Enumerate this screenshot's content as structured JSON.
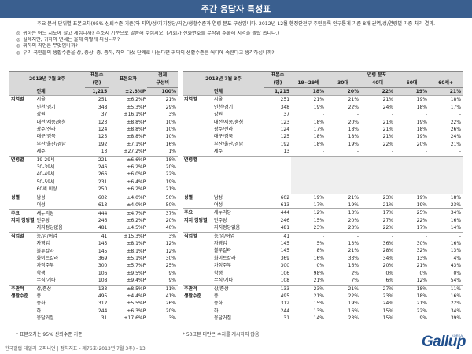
{
  "header": {
    "title": "주간 응답자 특성표",
    "subtitle": "주요 분석 단위별 표본오차(95% 신뢰수준 기준)와 지역/성/지지정당/직업/생활수준과 연령 분포 구성입니다. 2012년 12월 행정안전부 주민등록 인구통계 기준 8개 권역/성/연령별 가중 처리 결과."
  },
  "questions": [
    {
      "mark": "◎",
      "text": "귀하는 어느 시도에 살고 계십니까? 주소지 기준으로 말씀해 주십시오. (거회가 전화번호를 무작위 추출해 지역을 몰랐 옵니다.)"
    },
    {
      "mark": "◎",
      "text": "실례지만, 귀하의 연세는 올해 어떻게 되십니까?"
    },
    {
      "mark": "◎",
      "text": "귀하의 직업은 무엇입니까?"
    },
    {
      "mark": "◎",
      "text": "우리 국민들의 생활수준을 상, 중상, 중, 중하, 하의 다섯 단계로 나눈다면 귀댁의 생활수준은 어디에 속한다고 생각하십니까?"
    }
  ],
  "left_table": {
    "period": "2013년 7월 3주",
    "col_n": "표본수\n(명)",
    "col_n1": "표본수",
    "col_n2": "(명)",
    "col_err": "표본오차",
    "col_comp1": "전체",
    "col_comp2": "구성비",
    "rows": [
      {
        "cat": "",
        "label": "전체",
        "n": "1,215",
        "err": "±2.8%P",
        "comp": "100%",
        "total": true
      },
      {
        "cat": "지역별",
        "label": "서울",
        "n": "251",
        "err": "±6.2%P",
        "comp": "21%",
        "start": true
      },
      {
        "cat": "",
        "label": "인천/경기",
        "n": "348",
        "err": "±5.3%P",
        "comp": "29%"
      },
      {
        "cat": "",
        "label": "강원",
        "n": "37",
        "err": "±16.1%P",
        "comp": "3%"
      },
      {
        "cat": "",
        "label": "대전/세종/충청",
        "n": "123",
        "err": "±8.8%P",
        "comp": "10%"
      },
      {
        "cat": "",
        "label": "광주/전라",
        "n": "124",
        "err": "±8.8%P",
        "comp": "10%"
      },
      {
        "cat": "",
        "label": "대구/경북",
        "n": "125",
        "err": "±8.8%P",
        "comp": "10%"
      },
      {
        "cat": "",
        "label": "부산/울산/경남",
        "n": "192",
        "err": "±7.1%P",
        "comp": "16%"
      },
      {
        "cat": "",
        "label": "제주",
        "n": "13",
        "err": "±27.2%P",
        "comp": "1%"
      },
      {
        "cat": "연령별",
        "label": "19-29세",
        "n": "221",
        "err": "±6.6%P",
        "comp": "18%",
        "start": true
      },
      {
        "cat": "",
        "label": "30-39세",
        "n": "246",
        "err": "±6.2%P",
        "comp": "20%"
      },
      {
        "cat": "",
        "label": "40-49세",
        "n": "266",
        "err": "±6.0%P",
        "comp": "22%"
      },
      {
        "cat": "",
        "label": "50-59세",
        "n": "231",
        "err": "±6.4%P",
        "comp": "19%"
      },
      {
        "cat": "",
        "label": "60세 이상",
        "n": "250",
        "err": "±6.2%P",
        "comp": "21%"
      },
      {
        "cat": "성별",
        "label": "남성",
        "n": "602",
        "err": "±4.0%P",
        "comp": "50%",
        "start": true
      },
      {
        "cat": "",
        "label": "여성",
        "n": "613",
        "err": "±4.0%P",
        "comp": "50%"
      },
      {
        "cat": "주요",
        "label": "새누리당",
        "n": "444",
        "err": "±4.7%P",
        "comp": "37%",
        "start": true
      },
      {
        "cat": "지지 정당별",
        "label": "민주당",
        "n": "246",
        "err": "±6.2%P",
        "comp": "20%"
      },
      {
        "cat": "",
        "label": "지지정당없음",
        "n": "481",
        "err": "±4.5%P",
        "comp": "40%"
      },
      {
        "cat": "직업별",
        "label": "농/임/어업",
        "n": "41",
        "err": "±15.3%P",
        "comp": "3%",
        "start": true
      },
      {
        "cat": "",
        "label": "자영업",
        "n": "145",
        "err": "±8.1%P",
        "comp": "12%"
      },
      {
        "cat": "",
        "label": "블루칼라",
        "n": "145",
        "err": "±8.1%P",
        "comp": "12%"
      },
      {
        "cat": "",
        "label": "화이트칼라",
        "n": "369",
        "err": "±5.1%P",
        "comp": "30%"
      },
      {
        "cat": "",
        "label": "가정주부",
        "n": "300",
        "err": "±5.7%P",
        "comp": "25%"
      },
      {
        "cat": "",
        "label": "학생",
        "n": "106",
        "err": "±9.5%P",
        "comp": "9%"
      },
      {
        "cat": "",
        "label": "무직/기타",
        "n": "108",
        "err": "±9.4%P",
        "comp": "9%"
      },
      {
        "cat": "주관적",
        "label": "상/중상",
        "n": "133",
        "err": "±8.5%P",
        "comp": "11%",
        "start": true
      },
      {
        "cat": "생활수준",
        "label": "중",
        "n": "495",
        "err": "±4.4%P",
        "comp": "41%"
      },
      {
        "cat": "",
        "label": "중하",
        "n": "312",
        "err": "±5.5%P",
        "comp": "26%"
      },
      {
        "cat": "",
        "label": "하",
        "n": "244",
        "err": "±6.3%P",
        "comp": "20%"
      },
      {
        "cat": "",
        "label": "응답거절",
        "n": "31",
        "err": "±17.6%P",
        "comp": "3%",
        "last": true
      }
    ]
  },
  "right_table": {
    "period": "2013년 7월 3주",
    "col_n1": "표본수",
    "col_n2": "(명)",
    "col_group": "연령 분포",
    "age_cols": [
      "19~29세",
      "30대",
      "40대",
      "50대",
      "60세+"
    ],
    "rows": [
      {
        "cat": "",
        "label": "전체",
        "n": "1,215",
        "v": [
          "18%",
          "20%",
          "22%",
          "19%",
          "21%"
        ],
        "total": true
      },
      {
        "cat": "지역별",
        "label": "서울",
        "n": "251",
        "v": [
          "21%",
          "21%",
          "21%",
          "19%",
          "18%"
        ],
        "start": true
      },
      {
        "cat": "",
        "label": "인천/경기",
        "n": "348",
        "v": [
          "19%",
          "22%",
          "24%",
          "18%",
          "17%"
        ]
      },
      {
        "cat": "",
        "label": "강원",
        "n": "37",
        "v": [
          "-",
          "-",
          "-",
          "-",
          "-"
        ]
      },
      {
        "cat": "",
        "label": "대전/세종/충청",
        "n": "123",
        "v": [
          "18%",
          "20%",
          "21%",
          "19%",
          "22%"
        ]
      },
      {
        "cat": "",
        "label": "광주/전라",
        "n": "124",
        "v": [
          "17%",
          "18%",
          "21%",
          "18%",
          "26%"
        ]
      },
      {
        "cat": "",
        "label": "대구/경북",
        "n": "125",
        "v": [
          "18%",
          "18%",
          "21%",
          "19%",
          "24%"
        ]
      },
      {
        "cat": "",
        "label": "부산/울산/경남",
        "n": "192",
        "v": [
          "18%",
          "19%",
          "22%",
          "20%",
          "21%"
        ]
      },
      {
        "cat": "",
        "label": "제주",
        "n": "13",
        "v": [
          "-",
          "-",
          "-",
          "-",
          "-"
        ]
      },
      {
        "cat": "연령별",
        "label": "",
        "n": "",
        "v": [
          "",
          "",
          "",
          "",
          ""
        ],
        "start": true,
        "blank": true
      },
      {
        "cat": "",
        "label": "",
        "n": "",
        "v": [
          "",
          "",
          "",
          "",
          ""
        ],
        "blank": true
      },
      {
        "cat": "",
        "label": "",
        "n": "",
        "v": [
          "",
          "",
          "",
          "",
          ""
        ],
        "blank": true
      },
      {
        "cat": "",
        "label": "",
        "n": "",
        "v": [
          "",
          "",
          "",
          "",
          ""
        ],
        "blank": true
      },
      {
        "cat": "",
        "label": "",
        "n": "",
        "v": [
          "",
          "",
          "",
          "",
          ""
        ],
        "blank": true
      },
      {
        "cat": "성별",
        "label": "남성",
        "n": "602",
        "v": [
          "19%",
          "21%",
          "23%",
          "19%",
          "18%"
        ],
        "start": true
      },
      {
        "cat": "",
        "label": "여성",
        "n": "613",
        "v": [
          "17%",
          "19%",
          "21%",
          "19%",
          "23%"
        ]
      },
      {
        "cat": "주요",
        "label": "새누리당",
        "n": "444",
        "v": [
          "12%",
          "13%",
          "17%",
          "25%",
          "34%"
        ],
        "start": true
      },
      {
        "cat": "지지 정당별",
        "label": "민주당",
        "n": "246",
        "v": [
          "15%",
          "20%",
          "27%",
          "22%",
          "16%"
        ]
      },
      {
        "cat": "",
        "label": "지지정당없음",
        "n": "481",
        "v": [
          "23%",
          "23%",
          "22%",
          "17%",
          "14%"
        ]
      },
      {
        "cat": "직업별",
        "label": "농/임/어업",
        "n": "41",
        "v": [
          "-",
          "-",
          "-",
          "-",
          "-"
        ],
        "start": true
      },
      {
        "cat": "",
        "label": "자영업",
        "n": "145",
        "v": [
          "5%",
          "13%",
          "36%",
          "30%",
          "16%"
        ]
      },
      {
        "cat": "",
        "label": "블루칼라",
        "n": "145",
        "v": [
          "8%",
          "21%",
          "28%",
          "32%",
          "13%"
        ]
      },
      {
        "cat": "",
        "label": "화이트칼라",
        "n": "369",
        "v": [
          "16%",
          "33%",
          "34%",
          "13%",
          "4%"
        ]
      },
      {
        "cat": "",
        "label": "가정주부",
        "n": "300",
        "v": [
          "0%",
          "16%",
          "20%",
          "21%",
          "43%"
        ]
      },
      {
        "cat": "",
        "label": "학생",
        "n": "106",
        "v": [
          "98%",
          "2%",
          "0%",
          "0%",
          "0%"
        ]
      },
      {
        "cat": "",
        "label": "무직/기타",
        "n": "108",
        "v": [
          "21%",
          "7%",
          "6%",
          "12%",
          "54%"
        ]
      },
      {
        "cat": "주관적",
        "label": "상/중상",
        "n": "133",
        "v": [
          "23%",
          "21%",
          "27%",
          "18%",
          "11%"
        ],
        "start": true
      },
      {
        "cat": "생활수준",
        "label": "중",
        "n": "495",
        "v": [
          "21%",
          "22%",
          "23%",
          "18%",
          "16%"
        ]
      },
      {
        "cat": "",
        "label": "중하",
        "n": "312",
        "v": [
          "15%",
          "19%",
          "24%",
          "21%",
          "22%"
        ]
      },
      {
        "cat": "",
        "label": "하",
        "n": "244",
        "v": [
          "13%",
          "16%",
          "15%",
          "22%",
          "34%"
        ]
      },
      {
        "cat": "",
        "label": "응답거절",
        "n": "31",
        "v": [
          "14%",
          "23%",
          "15%",
          "9%",
          "39%"
        ],
        "last": true
      }
    ]
  },
  "footnotes": {
    "left": "* 표본오차는 95% 신뢰수준 기준",
    "right": "* 50표본 미만은 수치를 게시하지 않음"
  },
  "footer": "한국갤럽 데일리 오피니언 | 정치지표 - 제76호(2013년 7월 3주) - 13",
  "logo": "Gallup",
  "logo_small": "KOREA"
}
